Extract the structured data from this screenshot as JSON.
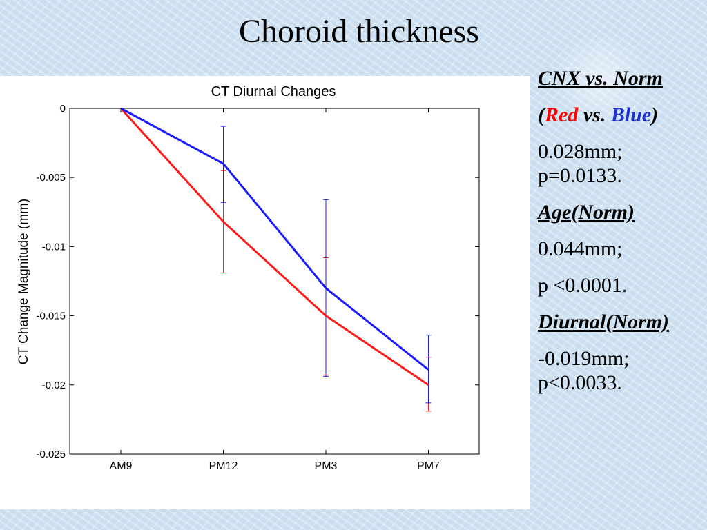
{
  "slide": {
    "title": "Choroid thickness"
  },
  "notes": {
    "cnx_heading": "CNX vs. Norm",
    "legend_open": "(",
    "legend_red": "Red",
    "legend_vs": " vs. ",
    "legend_blue": "Blue",
    "legend_close": ")",
    "cnx_value": "0.028mm;",
    "cnx_p": "p=0.0133.",
    "age_heading": "Age(Norm)",
    "age_value": "0.044mm;",
    "age_p": "p <0.0001.",
    "diurnal_heading_italic": "Diurnal",
    "diurnal_heading_rest": "(Norm)",
    "diurnal_value": "-0.019mm;",
    "diurnal_p": "p<0.0033."
  },
  "chart_data": {
    "type": "line",
    "title": "CT Diurnal Changes",
    "xlabel": "",
    "ylabel": "CT Change Magnitude (mm)",
    "categories": [
      "AM9",
      "PM12",
      "PM3",
      "PM7"
    ],
    "ylim": [
      -0.025,
      0
    ],
    "yticks": [
      0,
      -0.005,
      -0.01,
      -0.015,
      -0.02,
      -0.025
    ],
    "ytick_labels": [
      "0",
      "-0.005",
      "-0.01",
      "-0.015",
      "-0.02",
      "-0.025"
    ],
    "grid": false,
    "series": [
      {
        "color": "#1a1aff",
        "values": [
          0,
          -0.004,
          -0.013,
          -0.0189
        ],
        "err_upper": [
          0,
          -0.0013,
          -0.0066,
          -0.0164
        ],
        "err_lower": [
          0,
          -0.0068,
          -0.0194,
          -0.0213
        ]
      },
      {
        "color": "#ff1a1a",
        "values": [
          0,
          -0.0082,
          -0.015,
          -0.02
        ],
        "err_upper": [
          0,
          -0.0045,
          -0.0108,
          -0.018
        ],
        "err_lower": [
          0,
          -0.0119,
          -0.0193,
          -0.0219
        ]
      }
    ]
  }
}
